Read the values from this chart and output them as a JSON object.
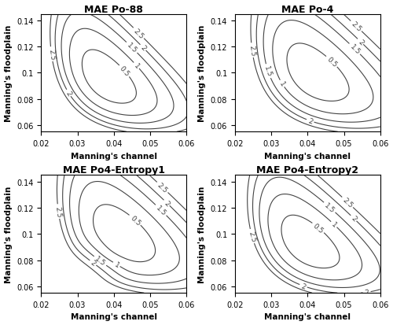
{
  "titles": [
    "MAE Po-88",
    "MAE Po-4",
    "MAE Po4-Entropy1",
    "MAE Po4-Entropy2"
  ],
  "xlabel": "Manning's channel",
  "ylabel": "Manning's floodplain",
  "xlim": [
    0.02,
    0.06
  ],
  "ylim": [
    0.055,
    0.145
  ],
  "xticks": [
    0.02,
    0.03,
    0.04,
    0.05,
    0.06
  ],
  "yticks": [
    0.06,
    0.08,
    0.1,
    0.12,
    0.14
  ],
  "ytick_labels": [
    "0.06",
    "0.08",
    "0.1",
    "0.12",
    "0.14"
  ],
  "contour_levels_po88": [
    0.5,
    1.0,
    1.5,
    2.0,
    2.5
  ],
  "contour_levels_po4": [
    0.5,
    1.0,
    1.5,
    2.0,
    2.5
  ],
  "contour_levels_ent1": [
    0.5,
    1.0,
    1.5,
    2.0,
    2.5
  ],
  "contour_levels_ent2": [
    0.5,
    1.0,
    1.5,
    2.0,
    2.5
  ],
  "background_color": "#ffffff",
  "line_color": "#444444",
  "linewidth": 0.8,
  "label_fontsize": 6.5,
  "title_fontsize": 9,
  "axis_label_fontsize": 7.5,
  "tick_fontsize": 7
}
